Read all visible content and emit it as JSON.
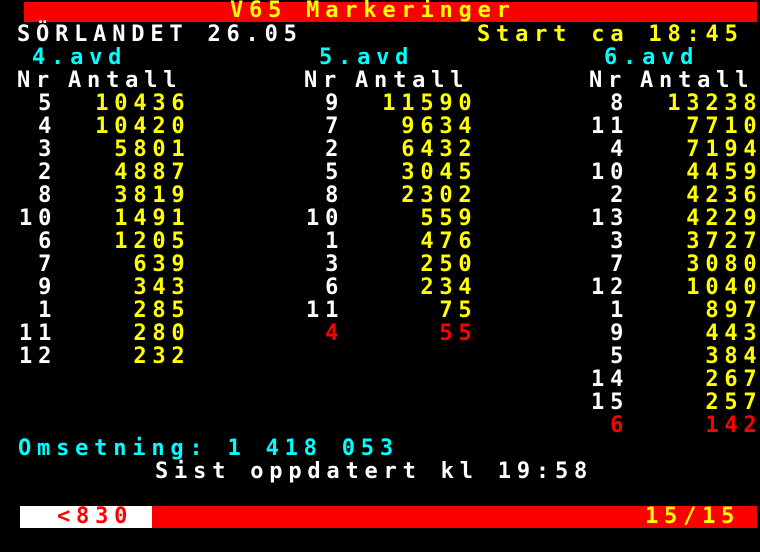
{
  "header": {
    "title": "V65 Markeringer",
    "track_date": "SÖRLANDET 26.05",
    "start_time": "Start ca 18:45"
  },
  "table": {
    "columns": [
      {
        "label": "4.avd",
        "nr_header": "Nr",
        "antall_header": "Antall",
        "rows": [
          {
            "nr": "5",
            "antall": "10436"
          },
          {
            "nr": "4",
            "antall": "10420"
          },
          {
            "nr": "3",
            "antall": "5801"
          },
          {
            "nr": "2",
            "antall": "4887"
          },
          {
            "nr": "8",
            "antall": "3819"
          },
          {
            "nr": "10",
            "antall": "1491"
          },
          {
            "nr": "6",
            "antall": "1205"
          },
          {
            "nr": "7",
            "antall": "639"
          },
          {
            "nr": "9",
            "antall": "343"
          },
          {
            "nr": "1",
            "antall": "285"
          },
          {
            "nr": "11",
            "antall": "280"
          },
          {
            "nr": "12",
            "antall": "232"
          }
        ]
      },
      {
        "label": "5.avd",
        "nr_header": "Nr",
        "antall_header": "Antall",
        "rows": [
          {
            "nr": "9",
            "antall": "11590"
          },
          {
            "nr": "7",
            "antall": "9634"
          },
          {
            "nr": "2",
            "antall": "6432"
          },
          {
            "nr": "5",
            "antall": "3045"
          },
          {
            "nr": "8",
            "antall": "2302"
          },
          {
            "nr": "10",
            "antall": "559"
          },
          {
            "nr": "1",
            "antall": "476"
          },
          {
            "nr": "3",
            "antall": "250"
          },
          {
            "nr": "6",
            "antall": "234"
          },
          {
            "nr": "11",
            "antall": "75"
          },
          {
            "nr": "4",
            "antall": "55",
            "highlight": true
          }
        ]
      },
      {
        "label": "6.avd",
        "nr_header": "Nr",
        "antall_header": "Antall",
        "rows": [
          {
            "nr": "8",
            "antall": "13238"
          },
          {
            "nr": "11",
            "antall": "7710"
          },
          {
            "nr": "4",
            "antall": "7194"
          },
          {
            "nr": "10",
            "antall": "4459"
          },
          {
            "nr": "2",
            "antall": "4236"
          },
          {
            "nr": "13",
            "antall": "4229"
          },
          {
            "nr": "3",
            "antall": "3727"
          },
          {
            "nr": "7",
            "antall": "3080"
          },
          {
            "nr": "12",
            "antall": "1040"
          },
          {
            "nr": "1",
            "antall": "897"
          },
          {
            "nr": "9",
            "antall": "443"
          },
          {
            "nr": "5",
            "antall": "384"
          },
          {
            "nr": "14",
            "antall": "267"
          },
          {
            "nr": "15",
            "antall": "257"
          },
          {
            "nr": "6",
            "antall": "142",
            "highlight": true
          }
        ]
      }
    ]
  },
  "footer": {
    "omsetning": "Omsetning: 1 418 053",
    "updated": "Sist oppdatert kl 19:58",
    "page_ref": "<830",
    "page_index": "15/15"
  },
  "colors": {
    "background": "#000000",
    "bar_red": "#fb0000",
    "text_white": "#ffffff",
    "text_yellow": "#ffff00",
    "text_cyan": "#00ffff",
    "text_red": "#ff0000",
    "page_ref_box": "#ffffff"
  }
}
